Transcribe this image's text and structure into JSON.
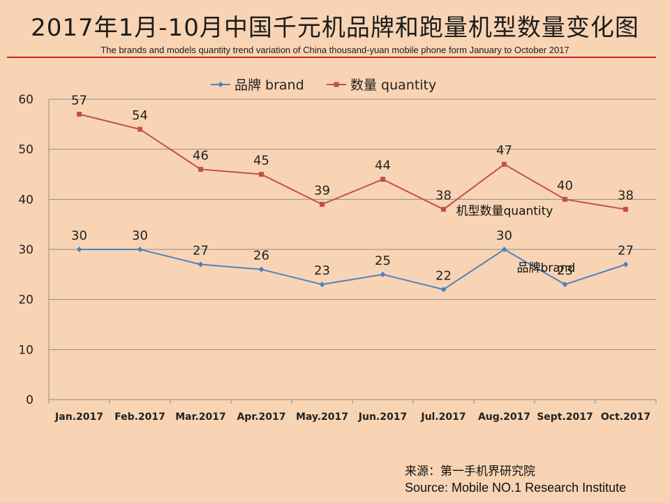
{
  "title": "2017年1月-10月中国千元机品牌和跑量机型数量变化图",
  "subtitle": "The brands and models quantity trend variation of China thousand-yuan mobile phone form January to October  2017",
  "source": {
    "cn": "来源：第一手机界研究院",
    "en": "Source: Mobile NO.1 Research Institute"
  },
  "colors": {
    "background": "#f8d4b4",
    "brand": "#4f81bd",
    "quantity": "#c0504d",
    "rule": "#d0241d"
  },
  "chart_data": {
    "type": "line",
    "categories": [
      "Jan.2017",
      "Feb.2017",
      "Mar.2017",
      "Apr.2017",
      "May.2017",
      "Jun.2017",
      "Jul.2017",
      "Aug.2017",
      "Sept.2017",
      "Oct.2017"
    ],
    "series": [
      {
        "name": "品牌 brand",
        "marker": "diamond",
        "color": "#4f81bd",
        "values": [
          30,
          30,
          27,
          26,
          23,
          25,
          22,
          30,
          23,
          27
        ]
      },
      {
        "name": "数量 quantity",
        "marker": "square",
        "color": "#c0504d",
        "values": [
          57,
          54,
          46,
          45,
          39,
          44,
          38,
          47,
          40,
          38
        ]
      }
    ],
    "ylim": [
      0,
      60
    ],
    "yticks": [
      0,
      10,
      20,
      30,
      40,
      50,
      60
    ],
    "grid": true,
    "legend": "top",
    "data_labels": true,
    "annotations": [
      {
        "text": "机型数量quantity",
        "series": 1,
        "near_index": 6
      },
      {
        "text": "品牌brand",
        "series": 0,
        "near_index": 7
      }
    ]
  }
}
